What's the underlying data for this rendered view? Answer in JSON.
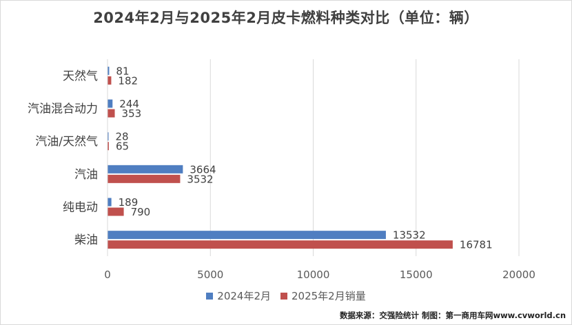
{
  "chart_data": {
    "type": "bar",
    "orientation": "horizontal",
    "title": "2024年2月与2025年2月皮卡燃料种类对比（单位：辆）",
    "categories": [
      "天然气",
      "汽油混合动力",
      "汽油/天然气",
      "汽油",
      "纯电动",
      "柴油"
    ],
    "series": [
      {
        "name": "2024年2月",
        "values": [
          81,
          244,
          28,
          3664,
          189,
          13532
        ],
        "color": "#4f7ec1"
      },
      {
        "name": "2025年2月销量",
        "values": [
          182,
          353,
          65,
          3532,
          790,
          16781
        ],
        "color": "#c0504d"
      }
    ],
    "xlim": [
      0,
      20000
    ],
    "xticks": [
      "0",
      "5000",
      "10000",
      "15000",
      "20000"
    ],
    "grid": true,
    "legend_position": "bottom"
  },
  "source_note": "数据来源：交强险统计 制图：第一商用车网www.cvworld.cn"
}
